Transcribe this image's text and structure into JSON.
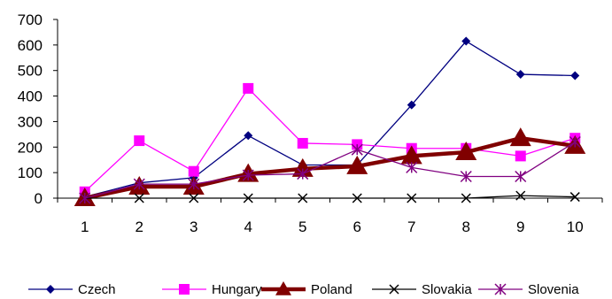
{
  "chart_data": {
    "type": "line",
    "x": [
      1,
      2,
      3,
      4,
      5,
      6,
      7,
      8,
      9,
      10
    ],
    "ylim": [
      0,
      700
    ],
    "y_ticks": [
      0,
      100,
      200,
      300,
      400,
      500,
      600,
      700
    ],
    "grid": false,
    "legend_position": "bottom",
    "series": [
      {
        "name": "Czech",
        "color": "#000080",
        "marker": "diamond",
        "line_weight": "thin",
        "values": [
          5,
          60,
          80,
          245,
          130,
          130,
          365,
          615,
          485,
          480
        ]
      },
      {
        "name": "Hungary",
        "color": "#FF00FF",
        "marker": "square",
        "line_weight": "thin",
        "values": [
          25,
          225,
          105,
          430,
          215,
          210,
          195,
          195,
          165,
          235
        ]
      },
      {
        "name": "Poland",
        "color": "#800000",
        "marker": "triangle",
        "line_weight": "thick",
        "values": [
          0,
          45,
          45,
          95,
          115,
          125,
          165,
          180,
          235,
          205
        ]
      },
      {
        "name": "Slovakia",
        "color": "#000000",
        "marker": "x",
        "line_weight": "thin",
        "values": [
          0,
          0,
          0,
          0,
          0,
          0,
          0,
          0,
          10,
          5
        ]
      },
      {
        "name": "Slovenia",
        "color": "#800080",
        "marker": "asterisk",
        "line_weight": "thin",
        "values": [
          0,
          55,
          55,
          90,
          95,
          190,
          120,
          85,
          85,
          220
        ]
      }
    ]
  }
}
